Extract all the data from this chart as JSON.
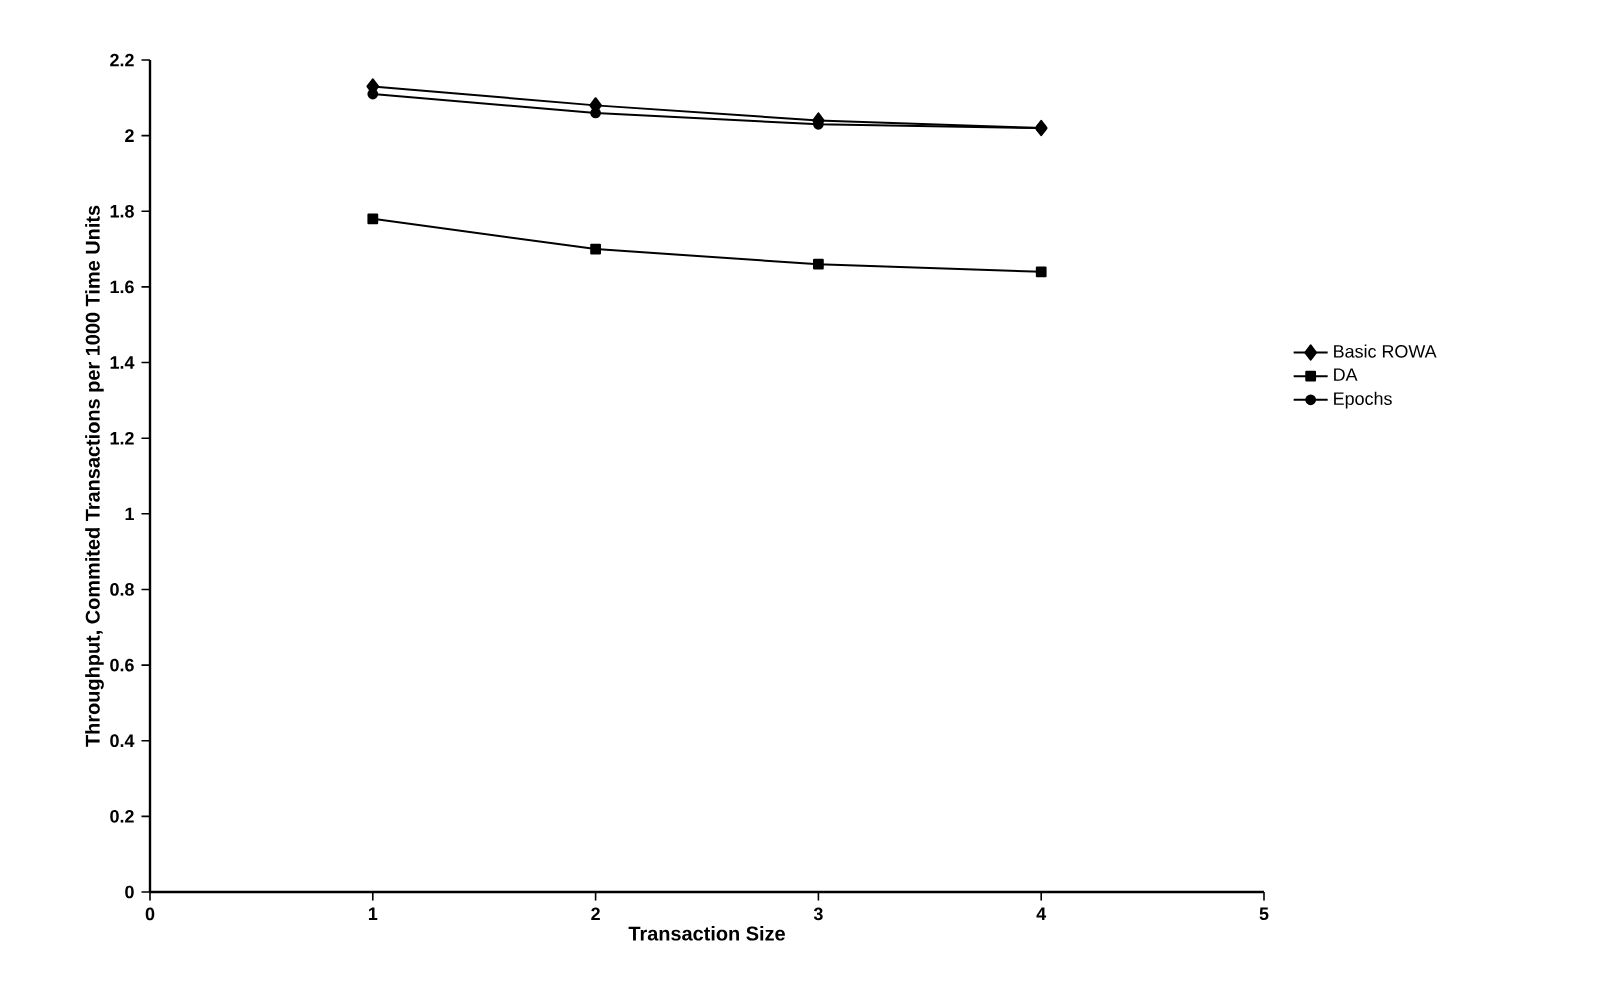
{
  "chart_data": {
    "type": "line",
    "xlabel": "Transaction Size",
    "ylabel": "Throughput, Commited Transactions per 1000 Time Units",
    "x": [
      1,
      2,
      3,
      4
    ],
    "series": [
      {
        "name": "Basic ROWA",
        "color": "#000000",
        "marker": "diamond",
        "values": [
          2.13,
          2.08,
          2.04,
          2.02
        ]
      },
      {
        "name": "DA",
        "color": "#000000",
        "marker": "square",
        "values": [
          1.78,
          1.7,
          1.66,
          1.64
        ]
      },
      {
        "name": "Epochs",
        "color": "#000000",
        "marker": "circle",
        "values": [
          2.11,
          2.06,
          2.03,
          2.02
        ]
      }
    ],
    "xlim": [
      0,
      5
    ],
    "xticks": [
      0,
      1,
      2,
      3,
      4,
      5
    ],
    "ylim": [
      0,
      2.2
    ],
    "yticks": [
      0,
      0.2,
      0.4,
      0.6,
      0.8,
      1,
      1.2,
      1.4,
      1.6,
      1.8,
      2,
      2.2
    ],
    "grid": false,
    "legend": "right",
    "line_style": "solid"
  }
}
